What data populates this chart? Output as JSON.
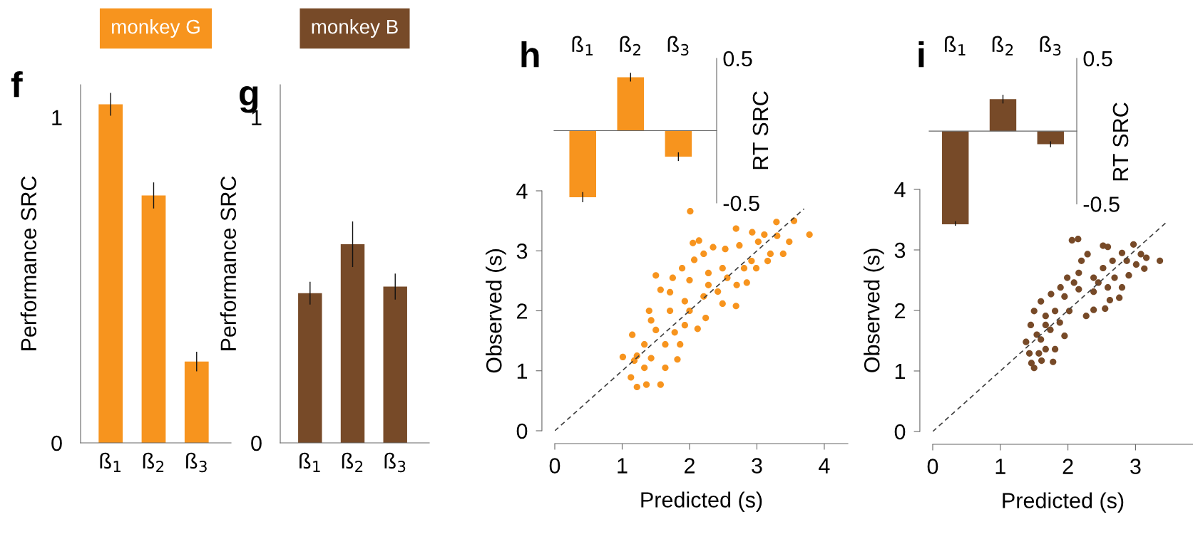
{
  "chart_data": [
    {
      "type": "bar",
      "title": "f",
      "categories": [
        "ß$_{1}$",
        "ß$_{2}$",
        "ß$_{3}$"
      ],
      "ylabel": "Performance SRC",
      "ylim": [
        0,
        1.1
      ],
      "yticks": [
        0,
        1
      ],
      "legend": "top",
      "series": [
        {
          "name": "monkey G",
          "color": "#f7941e",
          "values": [
            1.04,
            0.76,
            0.25
          ],
          "errors": [
            0.035,
            0.04,
            0.03
          ]
        }
      ]
    },
    {
      "type": "bar",
      "title": "g",
      "categories": [
        "ß$_{1}$",
        "ß$_{2}$",
        "ß$_{3}$"
      ],
      "ylabel": "Performance SRC",
      "ylim": [
        0,
        1.1
      ],
      "yticks": [
        0,
        1
      ],
      "legend": "top",
      "series": [
        {
          "name": "monkey B",
          "color": "#774a28",
          "values": [
            0.46,
            0.61,
            0.48
          ],
          "errors": [
            0.035,
            0.07,
            0.04
          ]
        }
      ]
    },
    {
      "type": "bar",
      "title": "h",
      "categories": [
        "ß$_{1}$",
        "ß$_{2}$",
        "ß$_{3}$"
      ],
      "ylabel": "RT SRC",
      "ylim": [
        -0.5,
        0.5
      ],
      "yticks": [
        0.5,
        {
          "value": -0.5,
          "label": "-0.5"
        }
      ],
      "series": [
        {
          "color": "#f7941e",
          "values": [
            -0.46,
            0.37,
            -0.18
          ],
          "errors": [
            0.035,
            0.03,
            0.03
          ]
        }
      ]
    },
    {
      "type": "scatter",
      "xlabel": "Predicted (s)",
      "ylabel": "Observed (s)",
      "xlim": [
        0,
        4.35
      ],
      "xticks": [
        0,
        1,
        2,
        3,
        4
      ],
      "ylim": [
        0,
        4
      ],
      "yticks": [
        0,
        1,
        2,
        3,
        4
      ],
      "marker": "circle",
      "series": [
        {
          "color": "#f7941e",
          "x": [
            2.01,
            3.78,
            3.55,
            3.29,
            2.69,
            2.93,
            3.11,
            3.3,
            3.48,
            3.39,
            2.05,
            2.14,
            2.35,
            2.21,
            2.07,
            1.5,
            1.89,
            2.53,
            2.74,
            3.02,
            3.2,
            2.99,
            2.85,
            2.69,
            2.49,
            2.24,
            2.12,
            1.82,
            1.64,
            1.57,
            1.36,
            1.22,
            1.13,
            1.01,
            1.15,
            1.4,
            1.57,
            1.75,
            2.0,
            2.28,
            2.42,
            2.21,
            1.93,
            1.71,
            1.5,
            1.33,
            1.43,
            1.64,
            1.93,
            1.78,
            1.22,
            2.0,
            2.28,
            2.56,
            2.81,
            2.7,
            3.16,
            2.92,
            2.49,
            1.71,
            1.43,
            1.86,
            1.33,
            1.18
          ],
          "values": [
            3.66,
            3.27,
            3.5,
            3.48,
            3.37,
            3.31,
            3.27,
            3.25,
            3.15,
            2.95,
            3.13,
            3.17,
            3.06,
            2.95,
            2.85,
            2.59,
            2.71,
            3.03,
            3.09,
            3.15,
            2.95,
            2.71,
            2.47,
            2.08,
            2.12,
            1.88,
            1.7,
            1.19,
            1.05,
            0.77,
            0.77,
            0.73,
            0.89,
            1.23,
            1.6,
            2.0,
            2.35,
            2.55,
            2.51,
            2.63,
            2.32,
            2.24,
            2.16,
            2.0,
            1.68,
            1.44,
            1.21,
            1.44,
            1.76,
            1.64,
            1.25,
            2.0,
            2.43,
            2.55,
            2.71,
            2.43,
            2.83,
            2.83,
            2.71,
            2.31,
            1.84,
            1.44,
            1.05,
            1.17
          ]
        },
        {
          "type": "line",
          "color": "#404040",
          "line_style": "dashed",
          "marker": "none",
          "x": [
            0,
            3.7
          ],
          "values": [
            0,
            3.7
          ]
        }
      ]
    },
    {
      "type": "bar",
      "title": "i",
      "categories": [
        "ß$_{1}$",
        "ß$_{2}$",
        "ß$_{3}$"
      ],
      "ylabel": "RT SRC",
      "ylim": [
        -0.65,
        0.5
      ],
      "yticks": [
        0.5,
        {
          "value": -0.5,
          "label": "-0.5"
        }
      ],
      "series": [
        {
          "color": "#774a28",
          "values": [
            -0.64,
            0.22,
            -0.09
          ],
          "errors": [
            0.02,
            0.03,
            0.02
          ]
        }
      ]
    },
    {
      "type": "scatter",
      "xlabel": "Predicted (s)",
      "ylabel": "Observed (s)",
      "xlim": [
        0,
        3.85
      ],
      "xticks": [
        0,
        1,
        2,
        3
      ],
      "ylim": [
        0,
        4
      ],
      "yticks": [
        0,
        1,
        2,
        3,
        4
      ],
      "marker": "circle",
      "series": [
        {
          "color": "#774a28",
          "x": [
            2.06,
            2.15,
            2.52,
            2.59,
            2.97,
            3.08,
            3.16,
            3.36,
            3.13,
            3.01,
            2.8,
            2.29,
            2.2,
            2.9,
            2.76,
            2.62,
            2.55,
            2.27,
            2.38,
            2.8,
            2.69,
            2.52,
            2.38,
            2.16,
            2.09,
            1.99,
            1.89,
            1.75,
            1.6,
            1.5,
            1.45,
            1.38,
            1.43,
            1.46,
            1.5,
            1.61,
            1.78,
            1.81,
            1.95,
            1.88,
            2.02,
            1.81,
            1.67,
            1.6,
            1.54,
            1.67,
            1.57,
            1.95,
            2.16,
            2.38,
            2.59,
            2.45,
            2.66,
            2.87,
            1.67,
            1.74
          ],
          "values": [
            3.16,
            3.18,
            3.07,
            3.05,
            3.09,
            2.93,
            2.87,
            2.82,
            2.69,
            2.76,
            2.95,
            2.93,
            2.82,
            2.58,
            2.21,
            2.17,
            2.03,
            1.91,
            2.01,
            2.38,
            2.54,
            2.7,
            2.54,
            2.62,
            2.46,
            2.54,
            2.38,
            2.27,
            2.15,
            1.99,
            1.76,
            1.48,
            1.29,
            1.13,
            1.05,
            1.17,
            1.15,
            1.36,
            1.58,
            1.8,
            1.99,
            1.99,
            1.76,
            1.52,
            1.6,
            1.36,
            1.29,
            2.23,
            2.35,
            2.31,
            2.38,
            2.46,
            2.82,
            2.82,
            1.91,
            1.68
          ]
        },
        {
          "type": "line",
          "color": "#404040",
          "line_style": "dashed",
          "marker": "none",
          "x": [
            0,
            3.45
          ],
          "values": [
            0,
            3.45
          ]
        }
      ]
    }
  ]
}
